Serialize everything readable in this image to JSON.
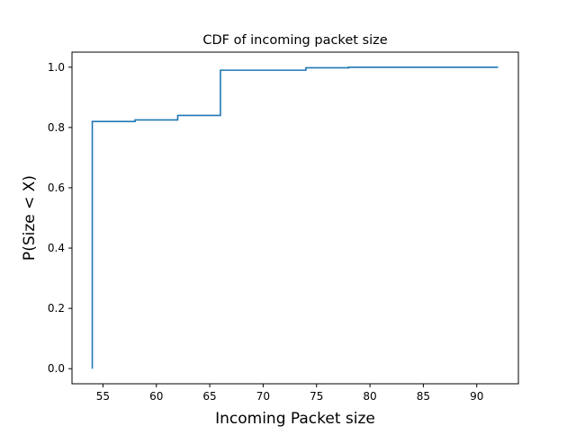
{
  "chart_data": {
    "type": "line",
    "step": true,
    "title": "CDF of incoming packet size",
    "xlabel": "Incoming Packet size",
    "ylabel": "P(Size < X)",
    "xlim": [
      52.1,
      93.9
    ],
    "ylim": [
      -0.05,
      1.05
    ],
    "xticks": [
      55,
      60,
      65,
      70,
      75,
      80,
      85,
      90
    ],
    "yticks": [
      0.0,
      0.2,
      0.4,
      0.6,
      0.8,
      1.0
    ],
    "xtick_labels": [
      "55",
      "60",
      "65",
      "70",
      "75",
      "80",
      "85",
      "90"
    ],
    "ytick_labels": [
      "0.0",
      "0.2",
      "0.4",
      "0.6",
      "0.8",
      "1.0"
    ],
    "grid": false,
    "series": [
      {
        "color": "#1f77b4",
        "x": [
          54,
          54,
          58,
          62,
          66,
          74,
          78,
          92
        ],
        "y": [
          0.0,
          0.82,
          0.825,
          0.84,
          0.99,
          0.998,
          1.0,
          1.0
        ]
      }
    ]
  }
}
